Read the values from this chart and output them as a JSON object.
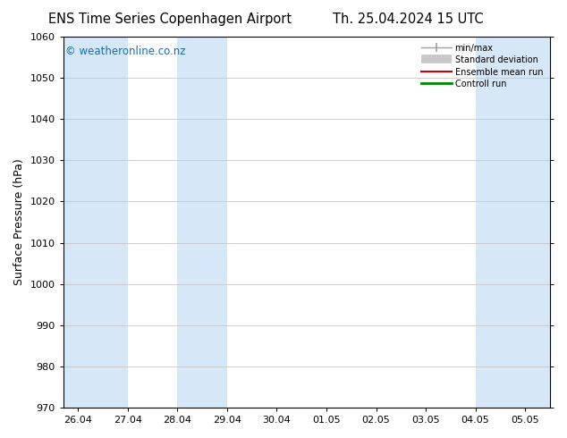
{
  "title_left": "ENS Time Series Copenhagen Airport",
  "title_right": "Th. 25.04.2024 15 UTC",
  "ylabel": "Surface Pressure (hPa)",
  "ylim": [
    970,
    1060
  ],
  "yticks": [
    970,
    980,
    990,
    1000,
    1010,
    1020,
    1030,
    1040,
    1050,
    1060
  ],
  "x_labels": [
    "26.04",
    "27.04",
    "28.04",
    "29.04",
    "30.04",
    "01.05",
    "02.05",
    "03.05",
    "04.05",
    "05.05"
  ],
  "x_positions": [
    0,
    1,
    2,
    3,
    4,
    5,
    6,
    7,
    8,
    9
  ],
  "xlim": [
    -0.3,
    9.5
  ],
  "shade_bands": [
    {
      "x_start": -0.3,
      "x_end": 1.0
    },
    {
      "x_start": 2.0,
      "x_end": 3.0
    },
    {
      "x_start": 8.0,
      "x_end": 9.0
    },
    {
      "x_start": 9.0,
      "x_end": 9.5
    }
  ],
  "shade_color": "#d6e8f7",
  "background_color": "#ffffff",
  "plot_bg_color": "#ffffff",
  "watermark": "© weatheronline.co.nz",
  "watermark_color": "#1a6ea8",
  "legend_items": [
    {
      "label": "min/max",
      "color": "#a0a0a0",
      "lw": 1.5
    },
    {
      "label": "Standard deviation",
      "color": "#c8c8c8",
      "lw": 7
    },
    {
      "label": "Ensemble mean run",
      "color": "#cc0000",
      "lw": 1.5
    },
    {
      "label": "Controll run",
      "color": "#008800",
      "lw": 2
    }
  ],
  "grid_color": "#c8c8c8",
  "spine_color": "#000000",
  "title_fontsize": 10.5,
  "tick_fontsize": 8,
  "ylabel_fontsize": 9,
  "watermark_fontsize": 8.5
}
